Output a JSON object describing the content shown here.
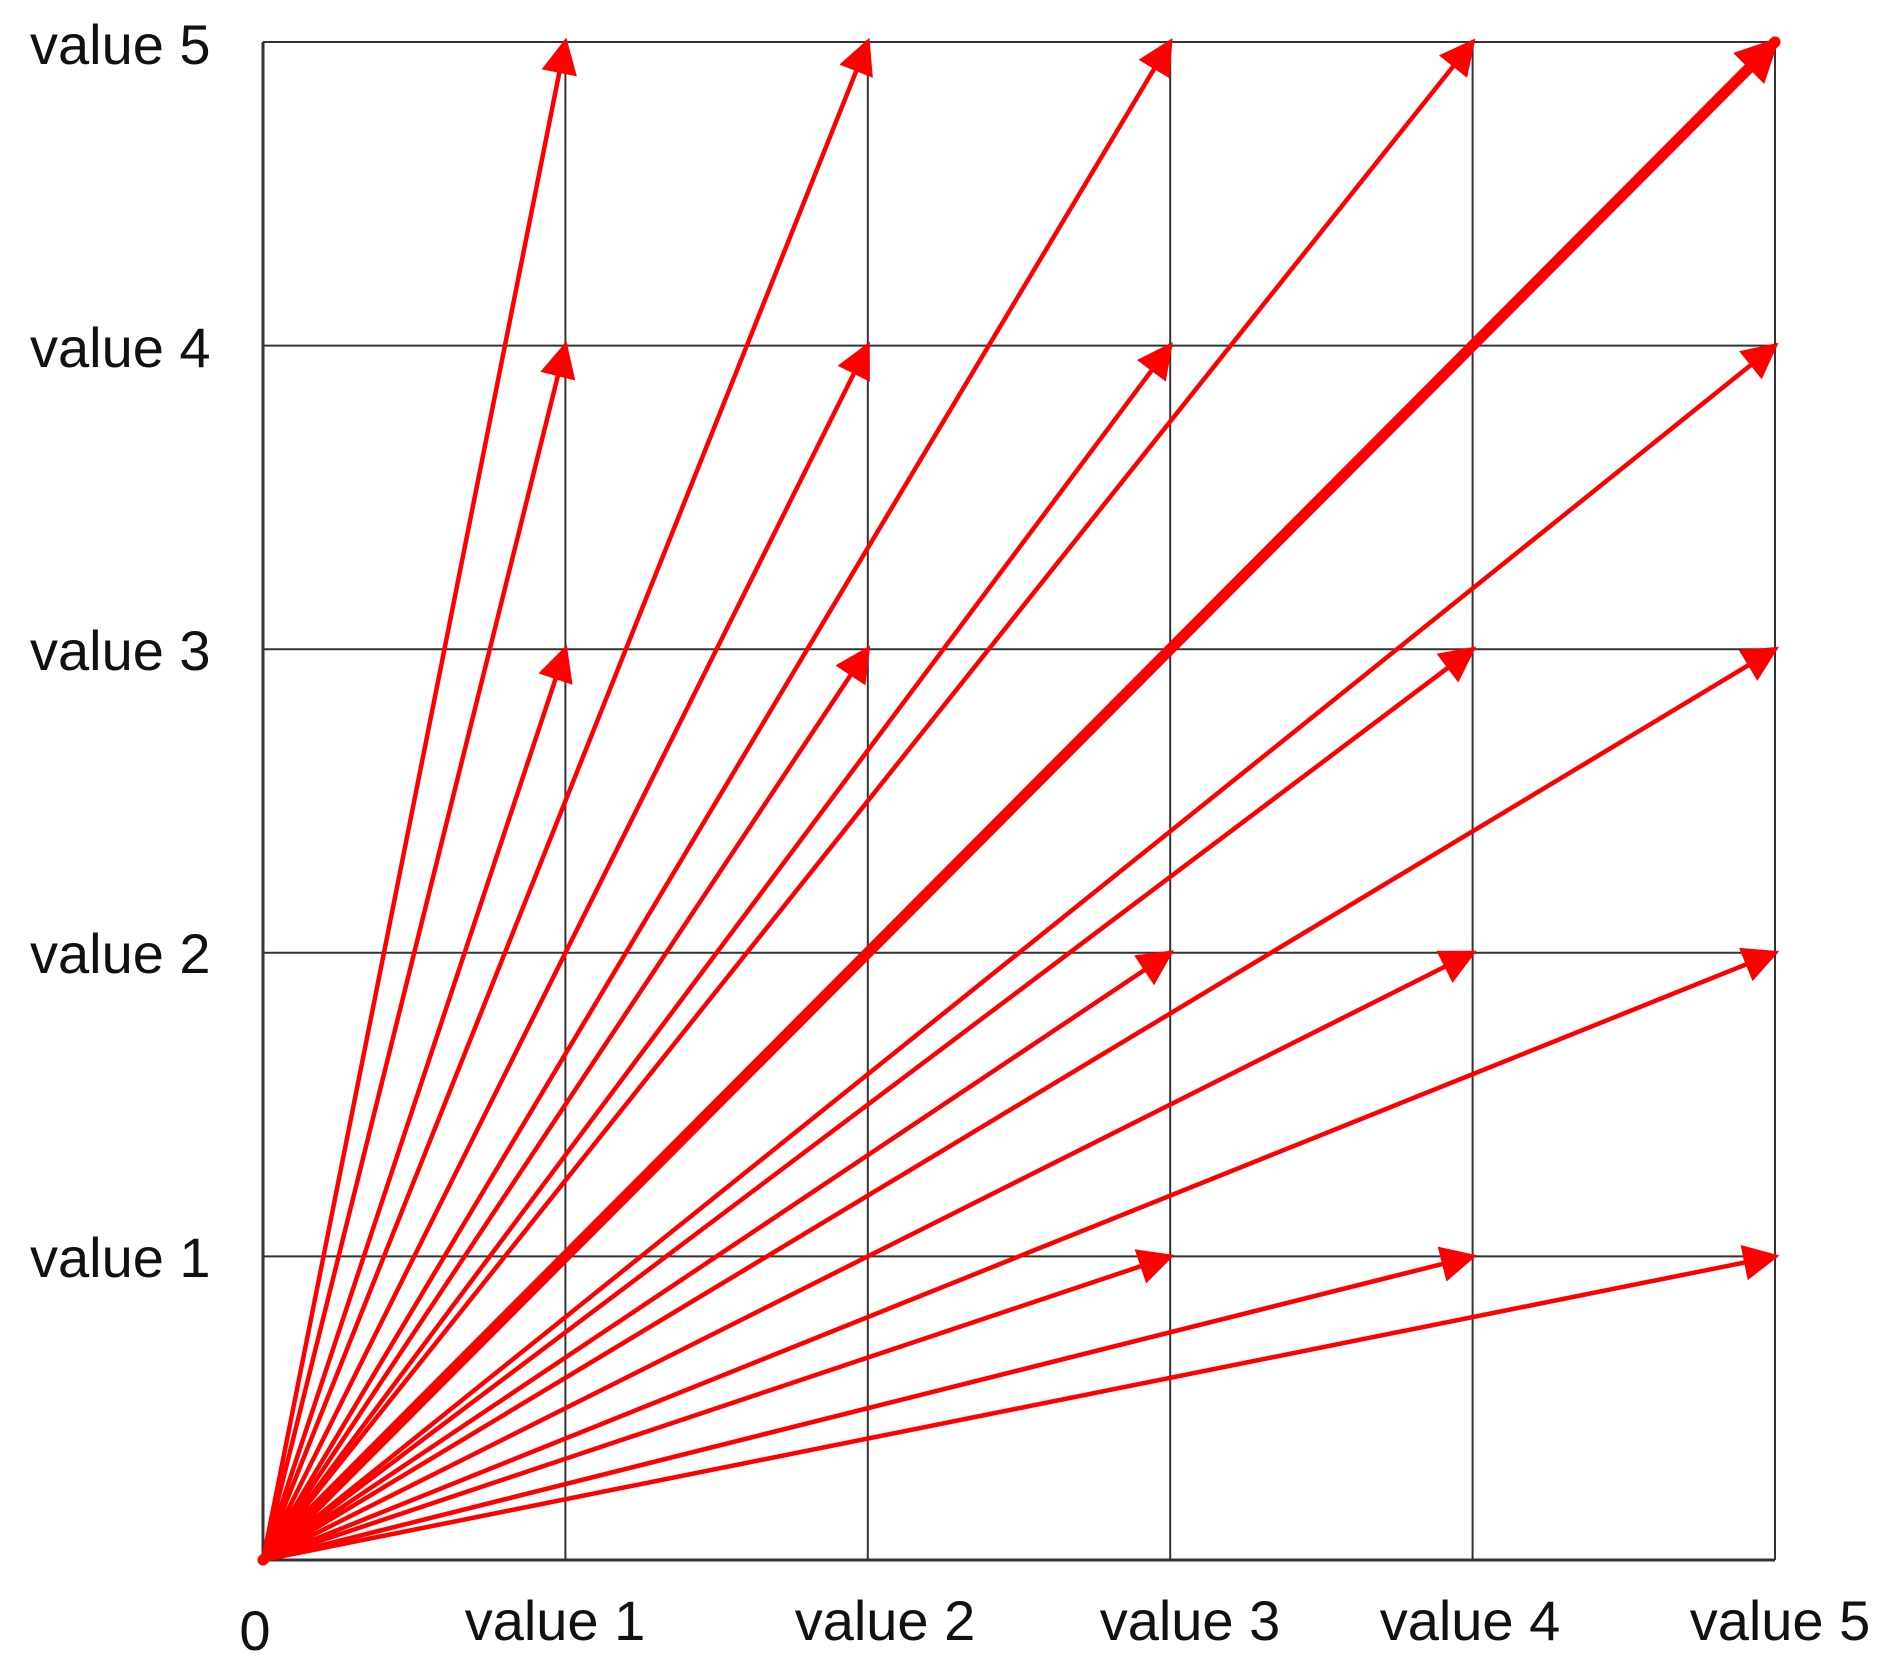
{
  "colors": {
    "arrow": "#ff0000",
    "grid": "#333333",
    "text": "#111111",
    "background": "#ffffff"
  },
  "origin_label": "0",
  "x_tick_labels": [
    "value 1",
    "value 2",
    "value 3",
    "value 4",
    "value 5"
  ],
  "y_tick_labels": [
    "value 1",
    "value 2",
    "value 3",
    "value 4",
    "value 5"
  ],
  "grid_range": [
    0,
    5
  ],
  "arrows": [
    {
      "x": 1,
      "y": 3
    },
    {
      "x": 1,
      "y": 4
    },
    {
      "x": 1,
      "y": 5
    },
    {
      "x": 2,
      "y": 3
    },
    {
      "x": 2,
      "y": 4
    },
    {
      "x": 2,
      "y": 5
    },
    {
      "x": 3,
      "y": 1
    },
    {
      "x": 3,
      "y": 2
    },
    {
      "x": 3,
      "y": 4
    },
    {
      "x": 3,
      "y": 5
    },
    {
      "x": 4,
      "y": 1
    },
    {
      "x": 4,
      "y": 2
    },
    {
      "x": 4,
      "y": 3
    },
    {
      "x": 4,
      "y": 5
    },
    {
      "x": 5,
      "y": 1
    },
    {
      "x": 5,
      "y": 2
    },
    {
      "x": 5,
      "y": 3
    },
    {
      "x": 5,
      "y": 4
    },
    {
      "x": 5,
      "y": 5,
      "emphasis": true
    }
  ]
}
